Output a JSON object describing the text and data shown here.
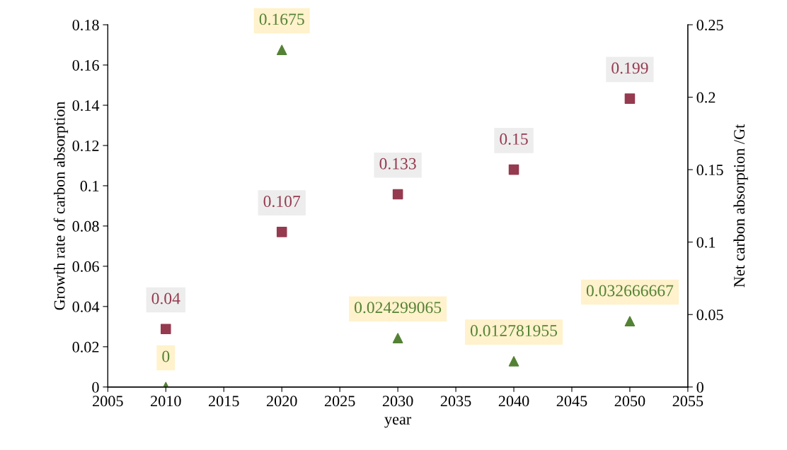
{
  "chart_data": {
    "type": "scatter",
    "xlabel": "year",
    "ylabel": "Growth rate of carbon absorption",
    "y2label": "Net carbon absorption /Gt",
    "x": [
      2010,
      2020,
      2030,
      2040,
      2050
    ],
    "series": [
      {
        "color": "#548235",
        "marker": "triangle",
        "values": [
          0,
          0.1675,
          0.024299065,
          0.012781955,
          0.032666667
        ]
      },
      {
        "color": "#953a4f",
        "marker": "square",
        "axis": "y2",
        "values": [
          0.04,
          0.107,
          0.133,
          0.15,
          0.199
        ]
      }
    ],
    "xlim": [
      2005,
      2055
    ],
    "xticks": [
      2005,
      2010,
      2015,
      2020,
      2025,
      2030,
      2035,
      2040,
      2045,
      2050,
      2055
    ],
    "ylim": [
      0,
      0.18
    ],
    "yticks": [
      0,
      0.02,
      0.04,
      0.06,
      0.08,
      0.1,
      0.12,
      0.14,
      0.16,
      0.18
    ],
    "y2lim": [
      0,
      0.25
    ],
    "y2ticks": [
      0,
      0.05,
      0.1,
      0.15,
      0.2,
      0.25
    ],
    "data_labels": true,
    "grid": false
  }
}
